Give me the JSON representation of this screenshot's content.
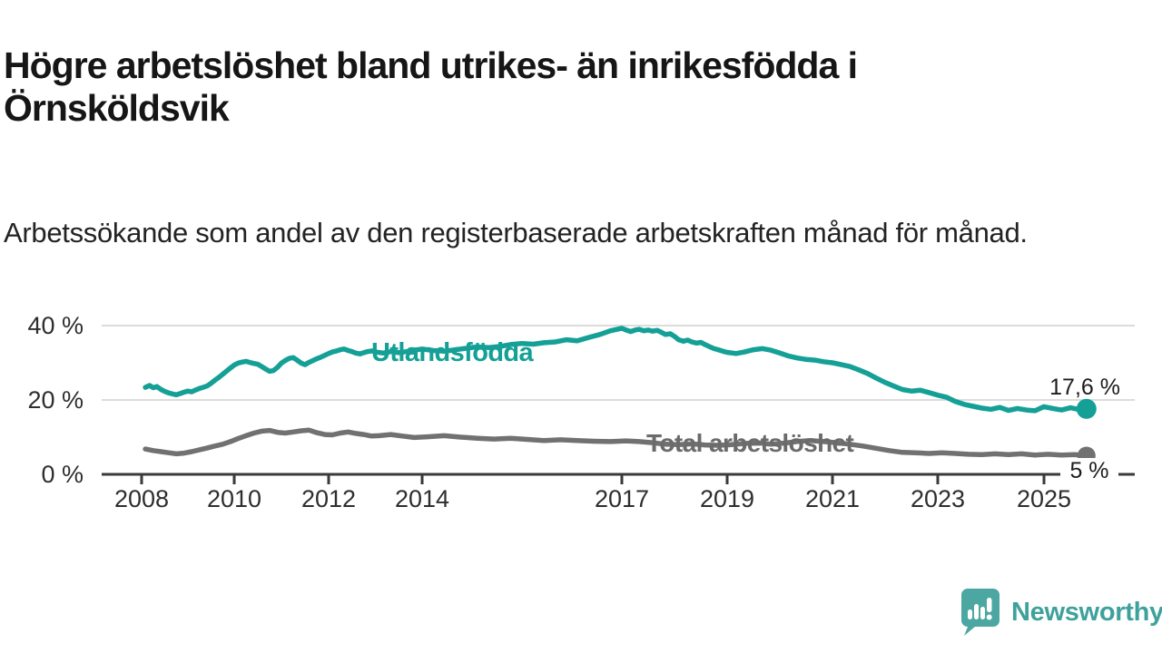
{
  "header": {
    "title": "Högre arbetslöshet bland utrikes- än inrikesfödda i Örnsköldsvik",
    "subtitle": "Arbetssökande som andel av den registerbaserade arbetskraften månad för månad."
  },
  "chart_data": {
    "type": "line",
    "unit": "%",
    "grid": true,
    "x_range": [
      2008,
      2025.8
    ],
    "ylim": [
      0,
      42
    ],
    "yticks": [
      {
        "value": 0,
        "label": "0 %"
      },
      {
        "value": 20,
        "label": "20 %"
      },
      {
        "value": 40,
        "label": "40 %"
      }
    ],
    "xticks": [
      {
        "year": 2008,
        "label": "2008"
      },
      {
        "year": 2010,
        "label": "2010"
      },
      {
        "year": 2012,
        "label": "2012"
      },
      {
        "year": 2014,
        "label": "2014"
      },
      {
        "year": 2017,
        "label": "2017"
      },
      {
        "year": 2019,
        "label": "2019"
      },
      {
        "year": 2021,
        "label": "2021"
      },
      {
        "year": 2023,
        "label": "2023"
      },
      {
        "year": 2025,
        "label": "2025"
      }
    ],
    "series": [
      {
        "name": "Utlandsfödda",
        "color": "#14a096",
        "end_value": 17.6,
        "end_label": "17,6 %",
        "points": [
          [
            2008.08,
            23.4
          ],
          [
            2008.17,
            23.9
          ],
          [
            2008.25,
            23.3
          ],
          [
            2008.33,
            23.6
          ],
          [
            2008.42,
            22.8
          ],
          [
            2008.5,
            22.3
          ],
          [
            2008.58,
            21.9
          ],
          [
            2008.67,
            21.6
          ],
          [
            2008.75,
            21.4
          ],
          [
            2008.83,
            21.7
          ],
          [
            2008.92,
            22.1
          ],
          [
            2009.0,
            22.4
          ],
          [
            2009.08,
            22.2
          ],
          [
            2009.17,
            22.7
          ],
          [
            2009.25,
            23.1
          ],
          [
            2009.33,
            23.4
          ],
          [
            2009.42,
            23.8
          ],
          [
            2009.5,
            24.5
          ],
          [
            2009.58,
            25.3
          ],
          [
            2009.67,
            26.1
          ],
          [
            2009.75,
            26.9
          ],
          [
            2009.83,
            27.7
          ],
          [
            2009.92,
            28.6
          ],
          [
            2010.0,
            29.4
          ],
          [
            2010.08,
            29.9
          ],
          [
            2010.17,
            30.2
          ],
          [
            2010.25,
            30.4
          ],
          [
            2010.33,
            30.1
          ],
          [
            2010.42,
            29.8
          ],
          [
            2010.5,
            29.6
          ],
          [
            2010.58,
            29.0
          ],
          [
            2010.67,
            28.3
          ],
          [
            2010.75,
            27.7
          ],
          [
            2010.83,
            27.9
          ],
          [
            2010.92,
            28.8
          ],
          [
            2011.0,
            29.9
          ],
          [
            2011.08,
            30.6
          ],
          [
            2011.17,
            31.2
          ],
          [
            2011.25,
            31.4
          ],
          [
            2011.33,
            30.7
          ],
          [
            2011.42,
            29.9
          ],
          [
            2011.5,
            29.5
          ],
          [
            2011.58,
            30.1
          ],
          [
            2011.67,
            30.6
          ],
          [
            2011.75,
            31.1
          ],
          [
            2011.83,
            31.5
          ],
          [
            2011.92,
            32.0
          ],
          [
            2012.0,
            32.5
          ],
          [
            2012.08,
            32.9
          ],
          [
            2012.17,
            33.2
          ],
          [
            2012.25,
            33.5
          ],
          [
            2012.33,
            33.7
          ],
          [
            2012.42,
            33.3
          ],
          [
            2012.5,
            33.0
          ],
          [
            2012.58,
            32.6
          ],
          [
            2012.67,
            32.4
          ],
          [
            2012.75,
            32.7
          ],
          [
            2012.83,
            33.0
          ],
          [
            2012.92,
            33.2
          ],
          [
            2013.0,
            32.9
          ],
          [
            2013.17,
            32.6
          ],
          [
            2013.33,
            33.0
          ],
          [
            2013.5,
            32.7
          ],
          [
            2013.67,
            33.0
          ],
          [
            2013.83,
            33.4
          ],
          [
            2014.0,
            33.7
          ],
          [
            2014.17,
            33.3
          ],
          [
            2014.33,
            33.1
          ],
          [
            2014.5,
            33.5
          ],
          [
            2014.67,
            33.9
          ],
          [
            2014.83,
            34.3
          ],
          [
            2015.0,
            34.1
          ],
          [
            2015.17,
            34.4
          ],
          [
            2015.33,
            34.9
          ],
          [
            2015.5,
            35.2
          ],
          [
            2015.67,
            35.0
          ],
          [
            2015.83,
            35.4
          ],
          [
            2016.0,
            35.6
          ],
          [
            2016.17,
            36.2
          ],
          [
            2016.33,
            35.9
          ],
          [
            2016.5,
            36.8
          ],
          [
            2016.67,
            37.6
          ],
          [
            2016.83,
            38.6
          ],
          [
            2017.0,
            39.3
          ],
          [
            2017.08,
            38.8
          ],
          [
            2017.17,
            38.4
          ],
          [
            2017.25,
            38.8
          ],
          [
            2017.33,
            39.0
          ],
          [
            2017.42,
            38.6
          ],
          [
            2017.5,
            38.8
          ],
          [
            2017.58,
            38.5
          ],
          [
            2017.67,
            38.7
          ],
          [
            2017.75,
            38.2
          ],
          [
            2017.83,
            37.6
          ],
          [
            2017.92,
            37.8
          ],
          [
            2018.0,
            37.1
          ],
          [
            2018.08,
            36.2
          ],
          [
            2018.17,
            35.8
          ],
          [
            2018.25,
            36.1
          ],
          [
            2018.33,
            35.6
          ],
          [
            2018.42,
            35.3
          ],
          [
            2018.5,
            35.5
          ],
          [
            2018.58,
            34.9
          ],
          [
            2018.67,
            34.3
          ],
          [
            2018.75,
            33.8
          ],
          [
            2018.83,
            33.5
          ],
          [
            2018.92,
            33.1
          ],
          [
            2019.0,
            32.8
          ],
          [
            2019.17,
            32.5
          ],
          [
            2019.33,
            32.9
          ],
          [
            2019.5,
            33.5
          ],
          [
            2019.67,
            33.8
          ],
          [
            2019.83,
            33.4
          ],
          [
            2020.0,
            32.6
          ],
          [
            2020.17,
            31.8
          ],
          [
            2020.33,
            31.3
          ],
          [
            2020.5,
            30.9
          ],
          [
            2020.67,
            30.7
          ],
          [
            2020.83,
            30.3
          ],
          [
            2021.0,
            30.0
          ],
          [
            2021.17,
            29.5
          ],
          [
            2021.33,
            29.0
          ],
          [
            2021.5,
            28.1
          ],
          [
            2021.67,
            27.1
          ],
          [
            2021.83,
            25.9
          ],
          [
            2022.0,
            24.7
          ],
          [
            2022.17,
            23.7
          ],
          [
            2022.33,
            22.8
          ],
          [
            2022.5,
            22.4
          ],
          [
            2022.67,
            22.6
          ],
          [
            2022.83,
            22.0
          ],
          [
            2023.0,
            21.3
          ],
          [
            2023.17,
            20.7
          ],
          [
            2023.33,
            19.6
          ],
          [
            2023.5,
            18.8
          ],
          [
            2023.67,
            18.3
          ],
          [
            2023.83,
            17.8
          ],
          [
            2024.0,
            17.5
          ],
          [
            2024.17,
            18.0
          ],
          [
            2024.33,
            17.2
          ],
          [
            2024.5,
            17.7
          ],
          [
            2024.67,
            17.3
          ],
          [
            2024.83,
            17.1
          ],
          [
            2025.0,
            18.2
          ],
          [
            2025.17,
            17.7
          ],
          [
            2025.33,
            17.3
          ],
          [
            2025.5,
            17.9
          ],
          [
            2025.67,
            17.4
          ],
          [
            2025.8,
            17.6
          ]
        ]
      },
      {
        "name": "Total arbetslöshet",
        "color": "#717171",
        "end_value": 5.0,
        "end_label": "5 %",
        "points": [
          [
            2008.08,
            6.8
          ],
          [
            2008.25,
            6.4
          ],
          [
            2008.42,
            6.1
          ],
          [
            2008.58,
            5.8
          ],
          [
            2008.75,
            5.5
          ],
          [
            2008.92,
            5.7
          ],
          [
            2009.08,
            6.1
          ],
          [
            2009.25,
            6.6
          ],
          [
            2009.42,
            7.1
          ],
          [
            2009.58,
            7.6
          ],
          [
            2009.75,
            8.1
          ],
          [
            2009.92,
            8.8
          ],
          [
            2010.08,
            9.6
          ],
          [
            2010.25,
            10.4
          ],
          [
            2010.42,
            11.1
          ],
          [
            2010.58,
            11.6
          ],
          [
            2010.75,
            11.8
          ],
          [
            2010.92,
            11.3
          ],
          [
            2011.08,
            11.1
          ],
          [
            2011.25,
            11.4
          ],
          [
            2011.42,
            11.7
          ],
          [
            2011.58,
            11.9
          ],
          [
            2011.75,
            11.2
          ],
          [
            2011.92,
            10.7
          ],
          [
            2012.08,
            10.6
          ],
          [
            2012.25,
            11.1
          ],
          [
            2012.42,
            11.4
          ],
          [
            2012.58,
            11.0
          ],
          [
            2012.75,
            10.7
          ],
          [
            2012.92,
            10.3
          ],
          [
            2013.08,
            10.4
          ],
          [
            2013.33,
            10.7
          ],
          [
            2013.58,
            10.3
          ],
          [
            2013.83,
            9.9
          ],
          [
            2014.08,
            10.1
          ],
          [
            2014.33,
            10.4
          ],
          [
            2014.58,
            10.0
          ],
          [
            2014.83,
            9.7
          ],
          [
            2015.08,
            9.5
          ],
          [
            2015.33,
            9.7
          ],
          [
            2015.58,
            9.4
          ],
          [
            2015.83,
            9.1
          ],
          [
            2016.08,
            9.3
          ],
          [
            2016.33,
            9.1
          ],
          [
            2016.58,
            8.9
          ],
          [
            2016.83,
            8.8
          ],
          [
            2017.08,
            9.0
          ],
          [
            2017.33,
            8.8
          ],
          [
            2017.58,
            8.5
          ],
          [
            2017.83,
            8.1
          ],
          [
            2018.08,
            8.0
          ],
          [
            2018.33,
            8.2
          ],
          [
            2018.58,
            7.9
          ],
          [
            2018.83,
            7.8
          ],
          [
            2019.08,
            8.0
          ],
          [
            2019.33,
            8.3
          ],
          [
            2019.58,
            8.5
          ],
          [
            2019.83,
            8.1
          ],
          [
            2020.08,
            8.4
          ],
          [
            2020.33,
            8.8
          ],
          [
            2020.58,
            9.1
          ],
          [
            2020.83,
            8.8
          ],
          [
            2021.08,
            8.5
          ],
          [
            2021.33,
            8.1
          ],
          [
            2021.58,
            7.6
          ],
          [
            2021.83,
            7.0
          ],
          [
            2022.08,
            6.4
          ],
          [
            2022.33,
            5.9
          ],
          [
            2022.58,
            5.8
          ],
          [
            2022.83,
            5.6
          ],
          [
            2023.08,
            5.8
          ],
          [
            2023.33,
            5.6
          ],
          [
            2023.58,
            5.4
          ],
          [
            2023.83,
            5.3
          ],
          [
            2024.08,
            5.5
          ],
          [
            2024.33,
            5.3
          ],
          [
            2024.58,
            5.5
          ],
          [
            2024.83,
            5.2
          ],
          [
            2025.08,
            5.4
          ],
          [
            2025.33,
            5.2
          ],
          [
            2025.58,
            5.3
          ],
          [
            2025.8,
            5.0
          ]
        ]
      }
    ],
    "colors": {
      "grid": "#dcdcdc",
      "axis": "#3a3a3a",
      "tick_text": "#2e2e2e",
      "value_label_text": "#1c1c1c"
    }
  },
  "footer": {
    "brand": "Newsworthy",
    "brand_color": "#3fa19b",
    "logo_color": "#4ca7a2",
    "logo_icon": "speech-bubble-bar-chart"
  }
}
